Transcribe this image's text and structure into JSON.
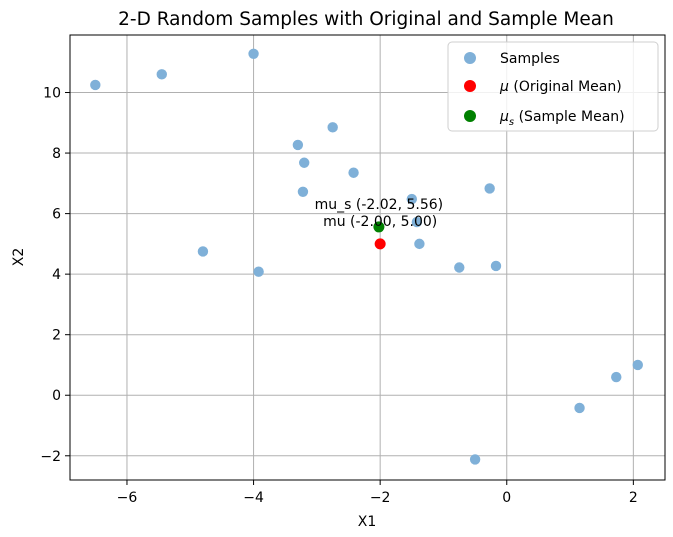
{
  "chart_data": {
    "type": "scatter",
    "title": "2-D Random Samples with Original and Sample Mean",
    "xlabel": "X1",
    "ylabel": "X2",
    "xlim": [
      -6.9,
      2.5
    ],
    "ylim": [
      -2.8,
      11.9
    ],
    "xticks": [
      -6,
      -4,
      -2,
      0,
      2
    ],
    "yticks": [
      -2,
      0,
      2,
      4,
      6,
      8,
      10
    ],
    "xtick_labels": [
      "−6",
      "−4",
      "−2",
      "0",
      "2"
    ],
    "ytick_labels": [
      "−2",
      "0",
      "2",
      "4",
      "6",
      "8",
      "10"
    ],
    "grid": true,
    "legend_position": "upper-right",
    "series": [
      {
        "name": "Samples",
        "color": "#7fb0d8",
        "points": [
          [
            -6.5,
            10.25
          ],
          [
            -5.45,
            10.6
          ],
          [
            -4.0,
            11.28
          ],
          [
            -4.8,
            4.75
          ],
          [
            -3.92,
            4.08
          ],
          [
            -3.3,
            8.27
          ],
          [
            -3.2,
            7.68
          ],
          [
            -3.22,
            6.72
          ],
          [
            -2.75,
            8.85
          ],
          [
            -2.42,
            7.35
          ],
          [
            -1.5,
            6.48
          ],
          [
            -1.42,
            5.72
          ],
          [
            -1.38,
            5.0
          ],
          [
            -0.75,
            4.22
          ],
          [
            -0.27,
            6.83
          ],
          [
            -0.17,
            4.27
          ],
          [
            -0.5,
            -2.12
          ],
          [
            1.15,
            -0.42
          ],
          [
            1.73,
            0.6
          ],
          [
            2.07,
            1.0
          ]
        ]
      },
      {
        "name": "μ (Original Mean)",
        "color": "#ff0000",
        "points": [
          [
            -2.0,
            5.0
          ]
        ]
      },
      {
        "name": "μₛ (Sample Mean)",
        "color": "#008000",
        "points": [
          [
            -2.02,
            5.56
          ]
        ]
      }
    ],
    "annotations": [
      {
        "text": "mu_s (-2.02, 5.56)",
        "x": -2.02,
        "y": 5.56
      },
      {
        "text": "mu (-2.00, 5.00)",
        "x": -2.0,
        "y": 5.0
      }
    ],
    "legend_labels": {
      "samples": "Samples",
      "mu_symbol": "μ",
      "mu_text": " (Original Mean)",
      "mus_symbol": "μ",
      "mus_sub": "s",
      "mus_text": " (Sample Mean)"
    }
  }
}
